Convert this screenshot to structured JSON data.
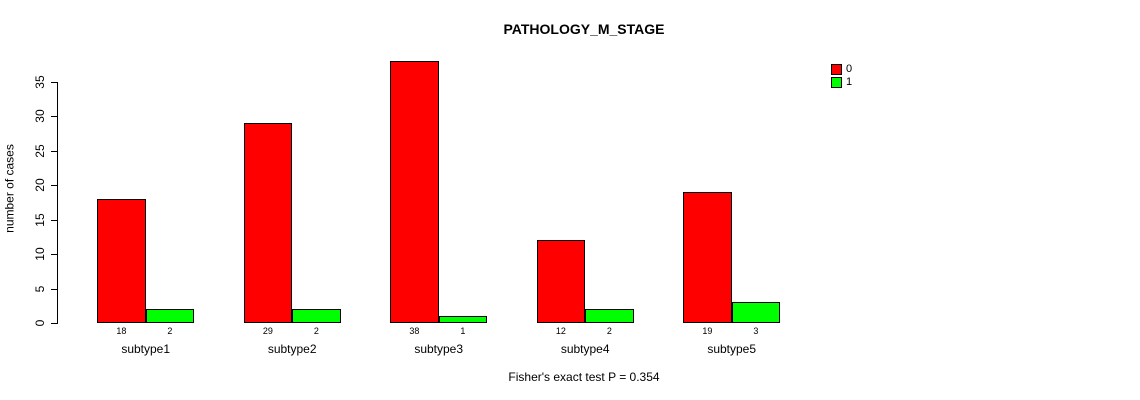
{
  "chart_data": {
    "type": "bar",
    "title": "PATHOLOGY_M_STAGE",
    "categories": [
      "subtype1",
      "subtype2",
      "subtype3",
      "subtype4",
      "subtype5"
    ],
    "series": [
      {
        "name": "0",
        "color": "#FF0000",
        "values": [
          18,
          29,
          38,
          12,
          19
        ]
      },
      {
        "name": "1",
        "color": "#00FF00",
        "values": [
          2,
          2,
          1,
          2,
          3
        ]
      }
    ],
    "xlabel": "",
    "ylabel": "number of cases",
    "yticks": [
      0,
      5,
      10,
      15,
      20,
      25,
      30,
      35
    ],
    "ylim": [
      0,
      38
    ],
    "grid": false,
    "legend_position": "top-right",
    "bar_value_labels": true,
    "annotation": "Fisher's exact test P = 0.354",
    "text_color": "#000000",
    "background_color": "#FFFFFF"
  }
}
